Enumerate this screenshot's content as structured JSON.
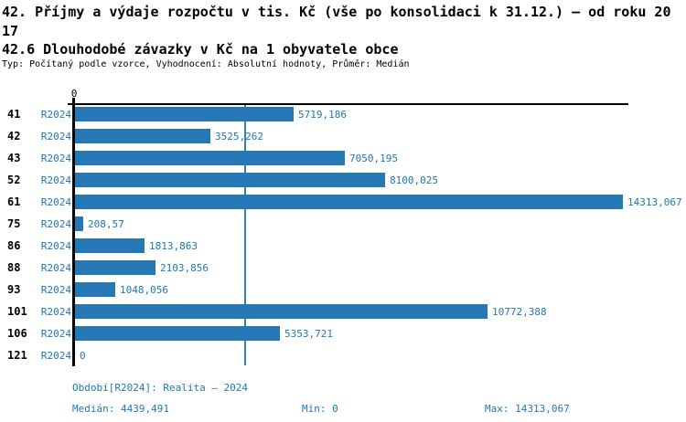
{
  "header": {
    "title_line1": "42. Příjmy a výdaje rozpočtu v tis. Kč (vše po konsolidaci k 31.12.) – od roku 20",
    "title_line2": "17",
    "subtitle": "42.6 Dlouhodobé závazky v Kč na 1 obyvatele obce",
    "meta": "Typ: Počítaný podle vzorce, Vyhodnocení: Absolutní hodnoty, Průměr: Medián"
  },
  "chart_data": {
    "type": "bar",
    "orientation": "horizontal",
    "series_name": "R2024",
    "categories": [
      "41",
      "42",
      "43",
      "52",
      "61",
      "75",
      "86",
      "88",
      "93",
      "101",
      "106",
      "121"
    ],
    "row_period_label": "R2024",
    "values": [
      5719.186,
      3525.262,
      7050.195,
      8100.025,
      14313.067,
      208.57,
      1813.863,
      2103.856,
      1048.056,
      10772.388,
      5353.721,
      0
    ],
    "value_labels": [
      "5719,186",
      "3525,262",
      "7050,195",
      "8100,025",
      "14313,067",
      "208,57",
      "1813,863",
      "2103,856",
      "1048,056",
      "10772,388",
      "5353,721",
      "0"
    ],
    "xlim": [
      0,
      14313.067
    ],
    "x_tick_labels": [
      "0"
    ],
    "median_value": 4439.491,
    "grid": false,
    "legend": "none",
    "bar_color": "#2578b5",
    "median_line_color": "#3181bd",
    "axis_color": "#000000",
    "blue_text_color": "#1f77b4"
  },
  "footer": {
    "period_info": "Období[R2024]: Realita – 2024",
    "median": "Medián: 4439,491",
    "min": "Min: 0",
    "max": "Max: 14313,067"
  }
}
